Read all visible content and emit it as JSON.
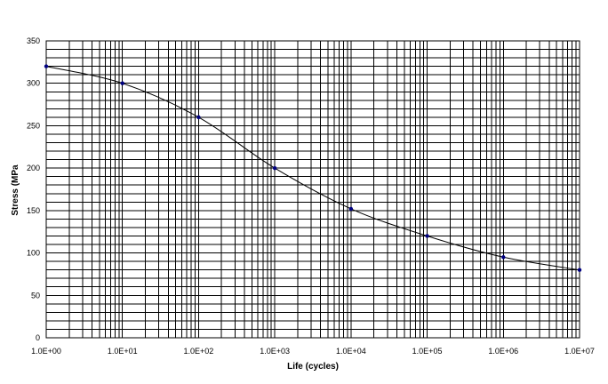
{
  "chart_data": {
    "type": "line",
    "xlabel": "Life (cycles)",
    "ylabel": "Stress (MPa",
    "x_scale": "log",
    "xlim": [
      1,
      10000000
    ],
    "ylim": [
      0,
      350
    ],
    "x_tick_labels": [
      "1.0E+00",
      "1.0E+01",
      "1.0E+02",
      "1.0E+03",
      "1.0E+04",
      "1.0E+05",
      "1.0E+06",
      "1.0E+07"
    ],
    "y_tick_labels": [
      "0",
      "50",
      "100",
      "150",
      "200",
      "250",
      "300",
      "350"
    ],
    "grid": true,
    "legend": "none",
    "series": [
      {
        "x": [
          1,
          10,
          100,
          1000,
          10000,
          100000,
          1000000,
          10000000
        ],
        "y": [
          320,
          300,
          260,
          200,
          152,
          120,
          95,
          80
        ]
      }
    ],
    "line_color": "#000000",
    "marker_color": "#000080"
  }
}
